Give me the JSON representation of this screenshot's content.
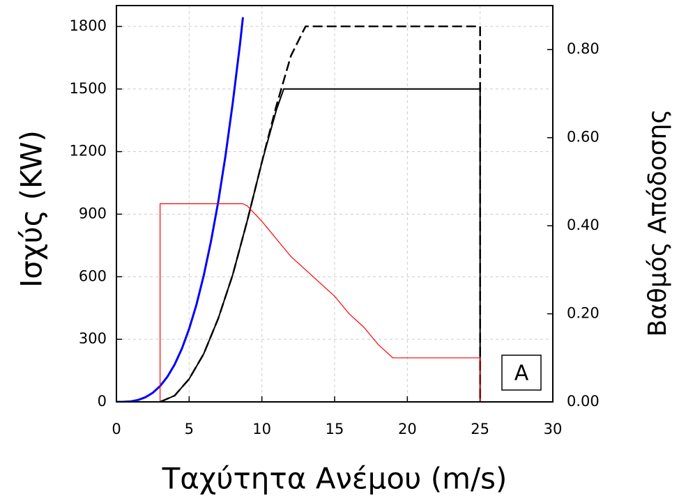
{
  "chart_data": {
    "type": "line",
    "xlabel": "Ταχύτητα Ανέμου (m/s)",
    "ylabel": "Ισχύς (KW)",
    "y2label": "Βαθμός Απόδοσης",
    "annotation": "A",
    "xlim": [
      0,
      30
    ],
    "xticks": [
      0,
      5,
      10,
      15,
      20,
      25,
      30
    ],
    "ylim": [
      0,
      1900
    ],
    "yticks": [
      0,
      300,
      600,
      900,
      1200,
      1500,
      1800
    ],
    "y2lim": [
      0,
      0.9
    ],
    "y2ticks": [
      {
        "value": 0,
        "label": "0.00"
      },
      {
        "value": 0.2,
        "label": "0.20"
      },
      {
        "value": 0.4,
        "label": "0.40"
      },
      {
        "value": 0.6,
        "label": "0.60"
      },
      {
        "value": 0.8,
        "label": "0.80"
      }
    ],
    "grid": true,
    "series": [
      {
        "color": "#0000ff",
        "style": "solid",
        "width": 3,
        "x": [
          0,
          0.5,
          1,
          1.5,
          2,
          2.5,
          3,
          3.5,
          4,
          4.5,
          5,
          5.5,
          6,
          6.5,
          7,
          7.5,
          8,
          8.5,
          8.7
        ],
        "values": [
          0,
          0.35,
          2.8,
          9.45,
          22.4,
          43.75,
          75.6,
          120,
          179,
          255,
          350,
          466,
          605,
          769,
          960,
          1181,
          1434,
          1719,
          1844
        ]
      },
      {
        "color": "#000000",
        "style": "dashed",
        "width": 2.5,
        "x": [
          3,
          4,
          5,
          6,
          7,
          8,
          9,
          10,
          11,
          12,
          13,
          25,
          25
        ],
        "values": [
          0,
          30,
          110,
          230,
          400,
          610,
          870,
          1150,
          1420,
          1660,
          1800,
          1800,
          0
        ]
      },
      {
        "color": "#000000",
        "style": "solid",
        "width": 2,
        "x": [
          3,
          4,
          5,
          6,
          7,
          8,
          9,
          10,
          11,
          11.5,
          25,
          25
        ],
        "values": [
          0,
          30,
          110,
          230,
          400,
          610,
          870,
          1150,
          1400,
          1500,
          1500,
          0
        ]
      },
      {
        "color": "#ff0000",
        "style": "solid",
        "width": 1.2,
        "axis": "y2",
        "x": [
          3,
          3,
          8.7,
          9,
          10,
          11,
          12,
          13,
          14,
          15,
          16,
          17,
          18,
          19,
          25,
          25
        ],
        "values": [
          0,
          0.45,
          0.45,
          0.445,
          0.41,
          0.37,
          0.33,
          0.3,
          0.27,
          0.24,
          0.2,
          0.17,
          0.13,
          0.1,
          0.1,
          0
        ]
      }
    ]
  }
}
